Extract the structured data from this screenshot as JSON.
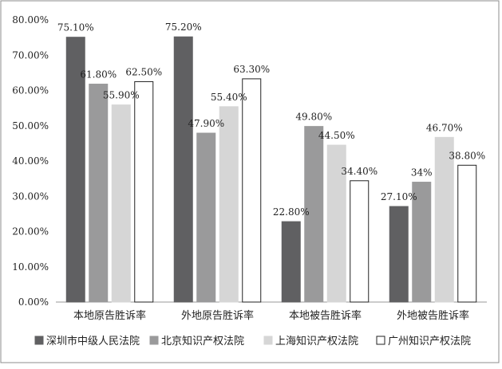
{
  "chart_data": {
    "type": "bar",
    "categories": [
      "本地原告胜诉率",
      "外地原告胜诉率",
      "本地被告胜诉率",
      "外地被告胜诉率"
    ],
    "series": [
      {
        "name": "深圳市中级人民法院",
        "values": [
          75.1,
          75.2,
          22.8,
          27.1
        ],
        "labels": [
          "75.10%",
          "75.20%",
          "22.80%",
          "27.10%"
        ],
        "color": "#606062",
        "stroke": "#606062"
      },
      {
        "name": "北京知识产权法院",
        "values": [
          61.8,
          47.9,
          49.8,
          34.0
        ],
        "labels": [
          "61.80%",
          "47.90%",
          "49.80%",
          "34%"
        ],
        "color": "#9a9a9b",
        "stroke": "#9a9a9b"
      },
      {
        "name": "上海知识产权法院",
        "values": [
          55.9,
          55.4,
          44.5,
          46.7
        ],
        "labels": [
          "55.90%",
          "55.40%",
          "44.50%",
          "46.70%"
        ],
        "color": "#d6d6d6",
        "stroke": "#d6d6d6"
      },
      {
        "name": "广州知识产权法院",
        "values": [
          62.5,
          63.3,
          34.4,
          38.8
        ],
        "labels": [
          "62.50%",
          "63.30%",
          "34.40%",
          "38.80%"
        ],
        "color": "#ffffff",
        "stroke": "#222222"
      }
    ],
    "y_ticks": [
      "0.00%",
      "10.00%",
      "20.00%",
      "30.00%",
      "40.00%",
      "50.00%",
      "60.00%",
      "70.00%",
      "80.00%"
    ],
    "ylim": [
      0,
      80
    ],
    "grid": false,
    "legend": "bottom"
  }
}
